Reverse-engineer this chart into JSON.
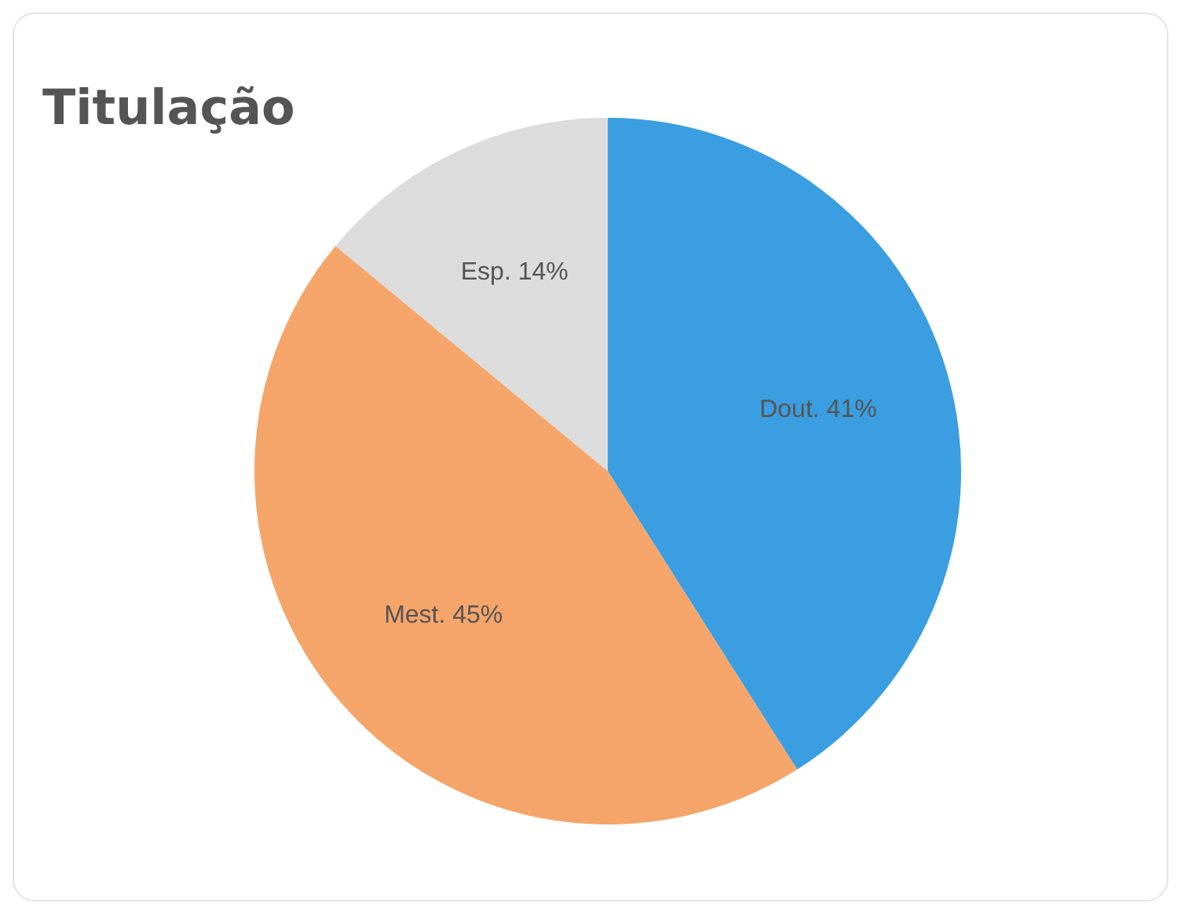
{
  "chart_data": {
    "type": "pie",
    "title": "Titulação",
    "categories": [
      "Dout.",
      "Mest.",
      "Esp."
    ],
    "values": [
      41,
      45,
      14
    ],
    "value_labels": [
      "41%",
      "45%",
      "14%"
    ],
    "colors": [
      "#3a9ee0",
      "#f5a56a",
      "#dcdcdc"
    ],
    "legend": false
  }
}
